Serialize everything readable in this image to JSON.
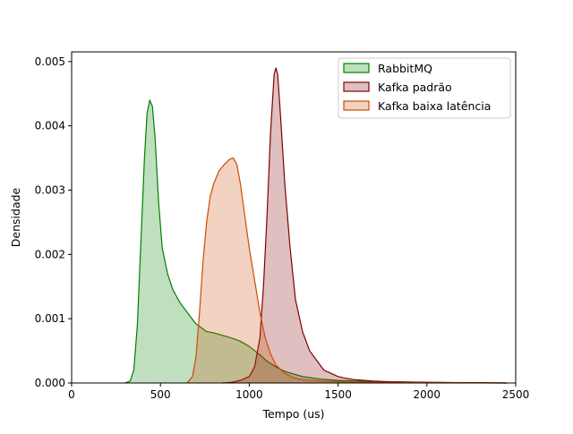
{
  "chart_data": {
    "type": "area",
    "title": "",
    "xlabel": "Tempo (us)",
    "ylabel": "Densidade",
    "xlim": [
      0,
      2500
    ],
    "ylim": [
      0,
      0.00515
    ],
    "x_ticks": [
      0,
      500,
      1000,
      1500,
      2000,
      2500
    ],
    "x_tick_labels": [
      "0",
      "500",
      "1000",
      "1500",
      "2000",
      "2500"
    ],
    "y_ticks": [
      0,
      0.001,
      0.002,
      0.003,
      0.004,
      0.005
    ],
    "y_tick_labels": [
      "0.000",
      "0.001",
      "0.002",
      "0.003",
      "0.004",
      "0.005"
    ],
    "grid": false,
    "legend_position": "top-right",
    "series": [
      {
        "name": "RabbitMQ",
        "line_color": "#008000",
        "fill_color": "#008000",
        "fill_opacity": 0.25,
        "points": [
          [
            300,
            0
          ],
          [
            330,
            3e-05
          ],
          [
            350,
            0.0002
          ],
          [
            370,
            0.0009
          ],
          [
            390,
            0.0022
          ],
          [
            410,
            0.0035
          ],
          [
            425,
            0.0042
          ],
          [
            440,
            0.0044
          ],
          [
            455,
            0.0043
          ],
          [
            470,
            0.0038
          ],
          [
            490,
            0.0028
          ],
          [
            510,
            0.0021
          ],
          [
            540,
            0.0017
          ],
          [
            570,
            0.00145
          ],
          [
            610,
            0.00125
          ],
          [
            650,
            0.0011
          ],
          [
            700,
            0.00092
          ],
          [
            760,
            0.0008
          ],
          [
            800,
            0.00078
          ],
          [
            850,
            0.00074
          ],
          [
            900,
            0.0007
          ],
          [
            950,
            0.00065
          ],
          [
            1000,
            0.00057
          ],
          [
            1050,
            0.00046
          ],
          [
            1100,
            0.00034
          ],
          [
            1150,
            0.00025
          ],
          [
            1200,
            0.00018
          ],
          [
            1300,
            0.0001
          ],
          [
            1400,
            6e-05
          ],
          [
            1500,
            4e-05
          ],
          [
            1700,
            2e-05
          ],
          [
            2000,
            1e-05
          ],
          [
            2450,
            0
          ]
        ]
      },
      {
        "name": "Kafka padrão",
        "line_color": "#800000",
        "fill_color": "#800000",
        "fill_opacity": 0.25,
        "points": [
          [
            850,
            0
          ],
          [
            900,
            1e-05
          ],
          [
            950,
            4e-05
          ],
          [
            1000,
            0.0001
          ],
          [
            1030,
            0.00025
          ],
          [
            1060,
            0.0007
          ],
          [
            1080,
            0.0015
          ],
          [
            1100,
            0.0026
          ],
          [
            1120,
            0.0039
          ],
          [
            1140,
            0.0048
          ],
          [
            1150,
            0.0049
          ],
          [
            1160,
            0.0048
          ],
          [
            1175,
            0.0042
          ],
          [
            1200,
            0.0031
          ],
          [
            1230,
            0.0021
          ],
          [
            1260,
            0.0013
          ],
          [
            1300,
            0.0008
          ],
          [
            1340,
            0.0005
          ],
          [
            1380,
            0.00035
          ],
          [
            1420,
            0.0002
          ],
          [
            1460,
            0.00015
          ],
          [
            1500,
            0.0001
          ],
          [
            1550,
            7e-05
          ],
          [
            1600,
            5e-05
          ],
          [
            1700,
            3e-05
          ],
          [
            1800,
            2e-05
          ],
          [
            2000,
            1e-05
          ],
          [
            2200,
            5e-06
          ],
          [
            2450,
            0
          ]
        ]
      },
      {
        "name": "Kafka baixa latência",
        "line_color": "#cc4c02",
        "fill_color": "#cc4c02",
        "fill_opacity": 0.25,
        "points": [
          [
            650,
            0
          ],
          [
            680,
            0.0001
          ],
          [
            700,
            0.0004
          ],
          [
            720,
            0.0011
          ],
          [
            740,
            0.0019
          ],
          [
            760,
            0.0025
          ],
          [
            780,
            0.0029
          ],
          [
            800,
            0.0031
          ],
          [
            830,
            0.0033
          ],
          [
            860,
            0.0034
          ],
          [
            890,
            0.00348
          ],
          [
            910,
            0.0035
          ],
          [
            930,
            0.0034
          ],
          [
            950,
            0.0031
          ],
          [
            975,
            0.0026
          ],
          [
            1000,
            0.0021
          ],
          [
            1030,
            0.0016
          ],
          [
            1060,
            0.0011
          ],
          [
            1090,
            0.0007
          ],
          [
            1120,
            0.00045
          ],
          [
            1150,
            0.00028
          ],
          [
            1200,
            0.00015
          ],
          [
            1250,
            8e-05
          ],
          [
            1300,
            5e-05
          ],
          [
            1400,
            3e-05
          ],
          [
            1600,
            1e-05
          ],
          [
            2000,
            5e-06
          ],
          [
            2450,
            0
          ]
        ]
      }
    ]
  }
}
